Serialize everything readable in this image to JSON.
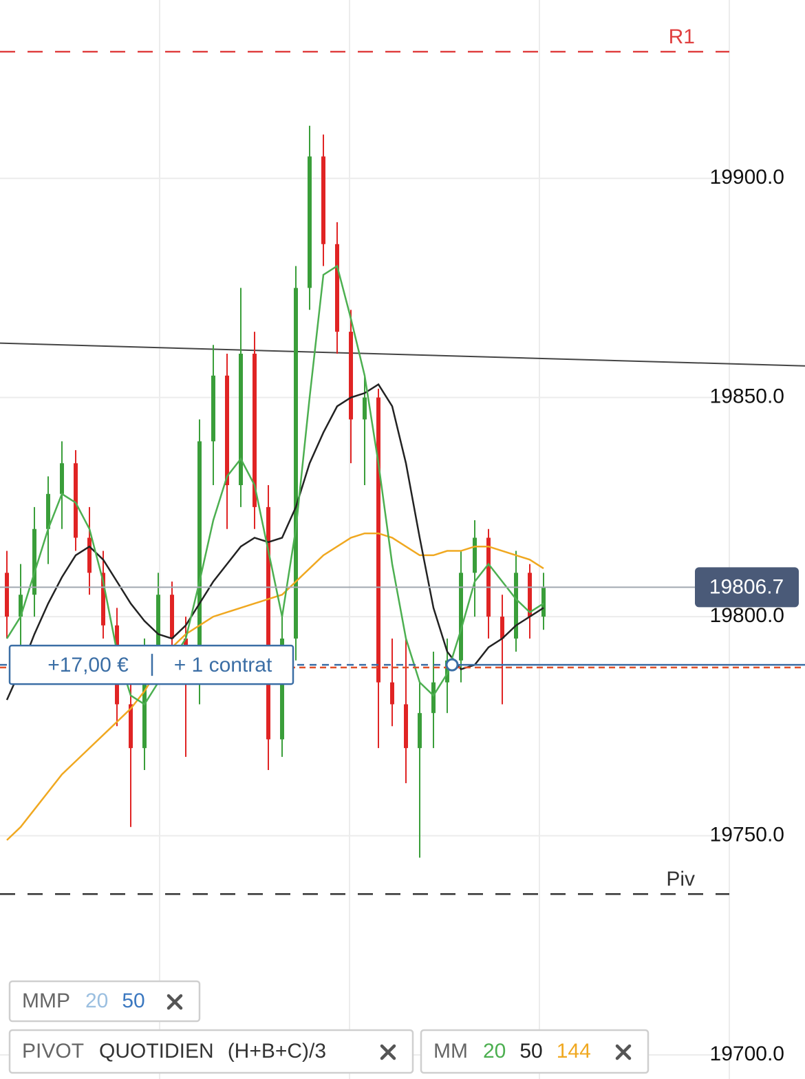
{
  "chart_data": {
    "type": "candlestick",
    "ylim": [
      19694.5,
      19940.7
    ],
    "yticks": [
      {
        "value": 19700,
        "label": "19700.0"
      },
      {
        "value": 19750,
        "label": "19750.0"
      },
      {
        "value": 19800,
        "label": "19800.0"
      },
      {
        "value": 19850,
        "label": "19850.0"
      },
      {
        "value": 19900,
        "label": "19900.0"
      }
    ],
    "grid": true,
    "up_color": "#3a9e3a",
    "down_color": "#e02424",
    "open": [
      19810,
      19800,
      19805,
      19820,
      19828,
      19835,
      19818,
      19810,
      19798,
      19780,
      19770,
      19790,
      19805,
      19795,
      19785,
      19840,
      19855,
      19830,
      19860,
      19825,
      19772,
      19795,
      19875,
      19905,
      19885,
      19865,
      19845,
      19850,
      19785,
      19780,
      19770,
      19778,
      19785,
      19790,
      19810,
      19818,
      19800,
      19795,
      19810,
      19800
    ],
    "high": [
      19815,
      19812,
      19825,
      19832,
      19840,
      19838,
      19825,
      19815,
      19802,
      19790,
      19795,
      19810,
      19808,
      19800,
      19845,
      19862,
      19860,
      19875,
      19865,
      19830,
      19800,
      19880,
      19912,
      19910,
      19890,
      19870,
      19855,
      19852,
      19795,
      19795,
      19785,
      19792,
      19795,
      19815,
      19822,
      19820,
      19805,
      19815,
      19812,
      19810
    ],
    "low": [
      19795,
      19790,
      19800,
      19812,
      19820,
      19815,
      19805,
      19795,
      19775,
      19752,
      19765,
      19785,
      19790,
      19768,
      19780,
      19830,
      19820,
      19825,
      19820,
      19765,
      19768,
      19790,
      19870,
      19880,
      19860,
      19835,
      19830,
      19770,
      19775,
      19762,
      19745,
      19770,
      19778,
      19785,
      19800,
      19795,
      19780,
      19792,
      19795,
      19797
    ],
    "close": [
      19800,
      19805,
      19820,
      19828,
      19835,
      19818,
      19810,
      19798,
      19780,
      19770,
      19790,
      19805,
      19795,
      19785,
      19840,
      19855,
      19830,
      19860,
      19825,
      19772,
      19795,
      19875,
      19905,
      19885,
      19865,
      19845,
      19850,
      19785,
      19780,
      19770,
      19778,
      19785,
      19790,
      19810,
      19818,
      19800,
      19795,
      19810,
      19800,
      19806.7
    ],
    "series": [
      {
        "name": "144",
        "color": "#f0a820",
        "values": [
          19749,
          19752,
          19756,
          19760,
          19764,
          19767,
          19770,
          19773,
          19776,
          19779,
          19783,
          19788,
          19793,
          19796,
          19798,
          19800,
          19801,
          19802,
          19803,
          19804,
          19805,
          19808,
          19811,
          19814,
          19816,
          19818,
          19819,
          19819,
          19818,
          19816,
          19814,
          19814,
          19815,
          19815,
          19816,
          19816,
          19815,
          19814,
          19813,
          19811
        ]
      },
      {
        "name": "50",
        "color": "#222222",
        "values": [
          19781,
          19788,
          19796,
          19803,
          19809,
          19814,
          19816,
          19813,
          19808,
          19803,
          19799,
          19796,
          19795,
          19798,
          19803,
          19808,
          19812,
          19816,
          19818,
          19817,
          19818,
          19825,
          19835,
          19842,
          19848,
          19850,
          19851,
          19853,
          19848,
          19835,
          19818,
          19802,
          19792,
          19788,
          19789,
          19793,
          19795,
          19798,
          19800,
          19802
        ]
      },
      {
        "name": "20",
        "color": "#4caf50",
        "values": [
          19795,
          19800,
          19810,
          19820,
          19828,
          19826,
          19820,
          19808,
          19792,
          19782,
          19780,
          19785,
          19790,
          19795,
          19808,
          19822,
          19832,
          19836,
          19830,
          19815,
          19800,
          19820,
          19850,
          19878,
          19880,
          19868,
          19855,
          19835,
          19812,
          19795,
          19785,
          19782,
          19787,
          19797,
          19808,
          19812,
          19808,
          19804,
          19801,
          19803
        ]
      }
    ],
    "current_price": 19806.7,
    "current_price_color": "#4a5a78",
    "levels": [
      {
        "label": "R1",
        "value": 19928.9,
        "color": "#e04040"
      },
      {
        "label": "Piv",
        "value": 19736.7,
        "color": "#333333"
      }
    ],
    "trend_line": [
      19862.4,
      19857.2
    ],
    "position": {
      "value": 19789,
      "entry": 19788.4,
      "pnl": "+17,00 €",
      "size": "+ 1 contrat",
      "color": "#3b6ea5",
      "entry_color": "#e0502a"
    }
  },
  "indicators": [
    {
      "name": "MMP",
      "params": [
        {
          "text": "20",
          "color": "#9bbfe0"
        },
        {
          "text": "50",
          "color": "#3b78c0"
        }
      ]
    },
    {
      "name": "PIVOT",
      "params": [
        {
          "text": "QUOTIDIEN",
          "color": "#333333"
        },
        {
          "text": "(H+B+C)/3",
          "color": "#333333"
        }
      ]
    },
    {
      "name": "MM",
      "params": [
        {
          "text": "20",
          "color": "#4caf50"
        },
        {
          "text": "50",
          "color": "#222222"
        },
        {
          "text": "144",
          "color": "#f0a820"
        }
      ]
    }
  ]
}
